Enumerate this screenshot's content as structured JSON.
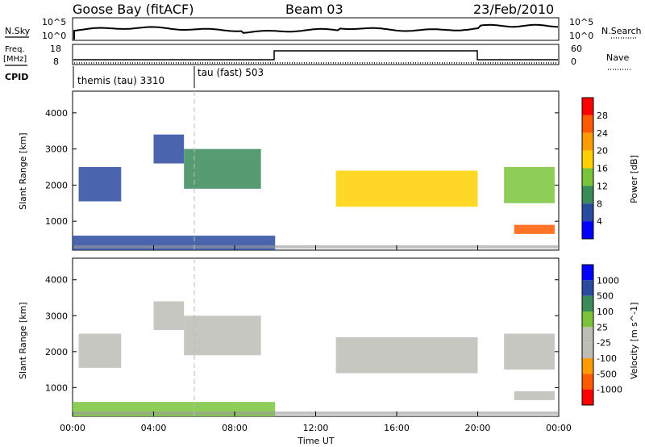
{
  "header": {
    "station": "Goose Bay (fitACF)",
    "beam": "Beam 03",
    "date": "23/Feb/2010"
  },
  "summary_labels": {
    "nsky": "N.Sky",
    "nsearch": "N.Search",
    "freq_line1": "Freq.",
    "freq_line2": "[MHz]",
    "nave": "Nave",
    "cpid": "CPID",
    "nsky_ticks": [
      "10^5",
      "10^0"
    ],
    "nsearch_ticks": [
      "10^5",
      "10^0"
    ],
    "freq_ticks": [
      "18",
      "8"
    ],
    "nave_ticks": [
      "60",
      "0"
    ]
  },
  "cpid_modes": [
    {
      "label": "themis (tau) 3310",
      "start_hour": 0
    },
    {
      "label": "tau (fast) 503",
      "start_hour": 6
    }
  ],
  "colors": {
    "power_scale": [
      "#0000ff",
      "#2a4aa0",
      "#3a8a5a",
      "#7ac43a",
      "#ffd000",
      "#ff9a00",
      "#ff5a00",
      "#ff0000"
    ],
    "velocity_scale": [
      "#ff0000",
      "#ff5a00",
      "#ff9a00",
      "#bdbdb6",
      "#bdbdb6",
      "#7ac43a",
      "#3a8a5a",
      "#2a4aa0",
      "#0000ff"
    ],
    "ground_scatter": "#b8b8b0"
  },
  "chart_data": [
    {
      "type": "heatmap",
      "title": "",
      "xlabel": "",
      "ylabel": "Slant Range [km]",
      "ylim": [
        200,
        4600
      ],
      "xlim": [
        0,
        24
      ],
      "y_ticks": [
        1000,
        2000,
        3000,
        4000
      ],
      "colorbar_label": "Power [dB]",
      "colorbar_ticks": [
        "28",
        "24",
        "20",
        "16",
        "12",
        "8",
        "4"
      ],
      "regions": [
        {
          "t0": 0.3,
          "t1": 2.4,
          "r0": 1550,
          "r1": 2500,
          "level": 1
        },
        {
          "t0": 4.0,
          "t1": 5.5,
          "r0": 2600,
          "r1": 3400,
          "level": 1
        },
        {
          "t0": 5.5,
          "t1": 9.3,
          "r0": 1900,
          "r1": 3000,
          "level": 2
        },
        {
          "t0": 13.0,
          "t1": 20.0,
          "r0": 1400,
          "r1": 2400,
          "level": 4
        },
        {
          "t0": 21.3,
          "t1": 23.8,
          "r0": 1500,
          "r1": 2500,
          "level": 3
        },
        {
          "t0": 21.8,
          "t1": 23.8,
          "r0": 650,
          "r1": 900,
          "level": 6
        },
        {
          "t0": 0.0,
          "t1": 10.0,
          "r0": 200,
          "r1": 600,
          "level": 1
        }
      ]
    },
    {
      "type": "heatmap",
      "title": "",
      "xlabel": "Time UT",
      "ylabel": "Slant Range [km]",
      "ylim": [
        200,
        4600
      ],
      "xlim": [
        0,
        24
      ],
      "y_ticks": [
        1000,
        2000,
        3000,
        4000
      ],
      "x_ticks": [
        "00:00",
        "04:00",
        "08:00",
        "12:00",
        "16:00",
        "20:00",
        "00:00"
      ],
      "colorbar_label": "Velocity [m s^-1]",
      "colorbar_ticks": [
        "1000",
        "500",
        "100",
        "25",
        "-25",
        "-100",
        "-500",
        "-1000"
      ],
      "regions": [
        {
          "t0": 0.3,
          "t1": 2.4,
          "r0": 1550,
          "r1": 2500,
          "level": 3
        },
        {
          "t0": 4.0,
          "t1": 5.5,
          "r0": 2600,
          "r1": 3400,
          "level": 3
        },
        {
          "t0": 5.5,
          "t1": 9.3,
          "r0": 1900,
          "r1": 3000,
          "level": 3
        },
        {
          "t0": 13.0,
          "t1": 20.0,
          "r0": 1400,
          "r1": 2400,
          "level": 3
        },
        {
          "t0": 21.3,
          "t1": 23.8,
          "r0": 1500,
          "r1": 2500,
          "level": 3
        },
        {
          "t0": 21.8,
          "t1": 23.8,
          "r0": 650,
          "r1": 900,
          "level": 3
        },
        {
          "t0": 0.0,
          "t1": 10.0,
          "r0": 200,
          "r1": 600,
          "level": 5
        }
      ]
    }
  ]
}
